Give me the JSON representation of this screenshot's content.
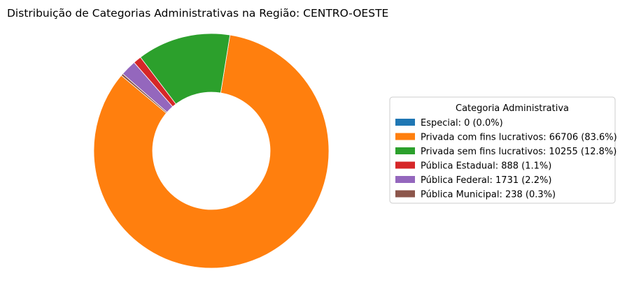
{
  "chart_data": {
    "type": "pie",
    "title": "Distribuição de Categorias Administrativas na Região: CENTRO-OESTE",
    "legend": {
      "title": "Categoria Administrativa",
      "placement": "right"
    },
    "donut": true,
    "slices": [
      {
        "label": "Especial: 0 (0.0%)",
        "category": "Especial",
        "value": 0,
        "percent": 0.0,
        "color": "#1f77b4"
      },
      {
        "label": "Privada com fins lucrativos: 66706 (83.6%)",
        "category": "Privada com fins lucrativos",
        "value": 66706,
        "percent": 83.6,
        "color": "#ff7f0e"
      },
      {
        "label": "Privada sem fins lucrativos: 10255 (12.8%)",
        "category": "Privada sem fins lucrativos",
        "value": 10255,
        "percent": 12.8,
        "color": "#2ca02c"
      },
      {
        "label": "Pública Estadual: 888 (1.1%)",
        "category": "Pública Estadual",
        "value": 888,
        "percent": 1.1,
        "color": "#d62728"
      },
      {
        "label": "Pública Federal: 1731 (2.2%)",
        "category": "Pública Federal",
        "value": 1731,
        "percent": 2.2,
        "color": "#9467bd"
      },
      {
        "label": "Pública Municipal: 238 (0.3%)",
        "category": "Pública Municipal",
        "value": 238,
        "percent": 0.3,
        "color": "#8c564b"
      }
    ]
  }
}
